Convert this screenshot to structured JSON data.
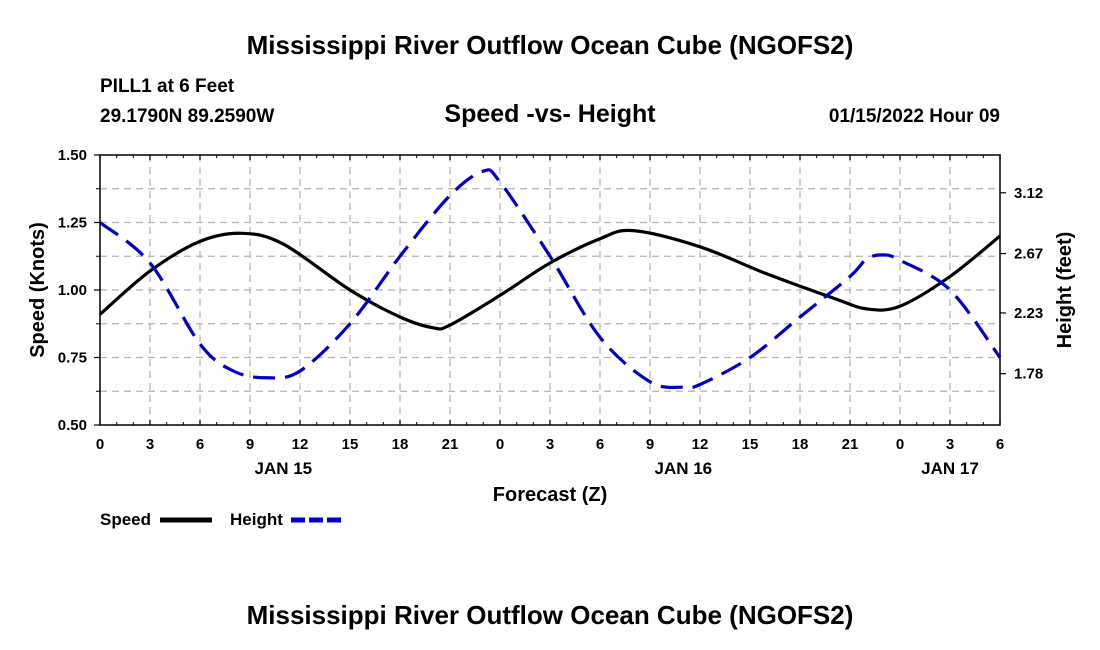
{
  "header": {
    "title": "Mississippi River Outflow Ocean Cube (NGOFS2)",
    "station": "PILL1 at 6 Feet",
    "coordinates": "29.1790N  89.2590W",
    "subtitle": "Speed -vs- Height",
    "datetime": "01/15/2022 Hour 09"
  },
  "footer": {
    "title": "Mississippi River Outflow Ocean Cube (NGOFS2)"
  },
  "chart_data": {
    "type": "line",
    "title": "Speed -vs- Height",
    "xlabel": "Forecast (Z)",
    "ylabel": "Speed (Knots)",
    "y2label": "Height (feet)",
    "x_hours": [
      0,
      54
    ],
    "x_tick_labels": [
      "0",
      "3",
      "6",
      "9",
      "12",
      "15",
      "18",
      "21",
      "0",
      "3",
      "6",
      "9",
      "12",
      "15",
      "18",
      "21",
      "0",
      "3",
      "6"
    ],
    "date_labels": [
      {
        "hour": 11,
        "label": "JAN 15"
      },
      {
        "hour": 35,
        "label": "JAN 16"
      },
      {
        "hour": 51,
        "label": "JAN 17"
      }
    ],
    "ylim": [
      0.5,
      1.5
    ],
    "y_ticks": [
      "0.50",
      "0.75",
      "1.00",
      "1.25",
      "1.50"
    ],
    "y2lim": [
      1.4,
      3.4
    ],
    "y2_ticks": [
      "1.78",
      "2.23",
      "2.67",
      "3.12"
    ],
    "grid": true,
    "legend": {
      "position": "bottom-left",
      "entries": [
        "Speed",
        "Height"
      ]
    },
    "series": [
      {
        "name": "Speed",
        "axis": "left",
        "color": "#000000",
        "style": "solid",
        "x": [
          0,
          3,
          6,
          8.5,
          11,
          15,
          18,
          20,
          21,
          24,
          27,
          30,
          32,
          36,
          40,
          44,
          46,
          48,
          51,
          54
        ],
        "y": [
          0.91,
          1.07,
          1.18,
          1.21,
          1.17,
          1.0,
          0.9,
          0.86,
          0.87,
          0.98,
          1.1,
          1.19,
          1.22,
          1.16,
          1.06,
          0.97,
          0.93,
          0.94,
          1.05,
          1.2
        ]
      },
      {
        "name": "Height",
        "axis": "right",
        "color": "#0000cc",
        "style": "dashed",
        "x": [
          0,
          3,
          6,
          8,
          10,
          12,
          15,
          18,
          21,
          23,
          24,
          27,
          30,
          33,
          35,
          36,
          39,
          42,
          45,
          46,
          47,
          48,
          51,
          54
        ],
        "y": [
          2.9,
          2.6,
          2.0,
          1.8,
          1.75,
          1.8,
          2.15,
          2.65,
          3.1,
          3.28,
          3.2,
          2.65,
          2.05,
          1.72,
          1.68,
          1.7,
          1.9,
          2.2,
          2.5,
          2.63,
          2.66,
          2.62,
          2.4,
          1.9
        ]
      }
    ]
  }
}
